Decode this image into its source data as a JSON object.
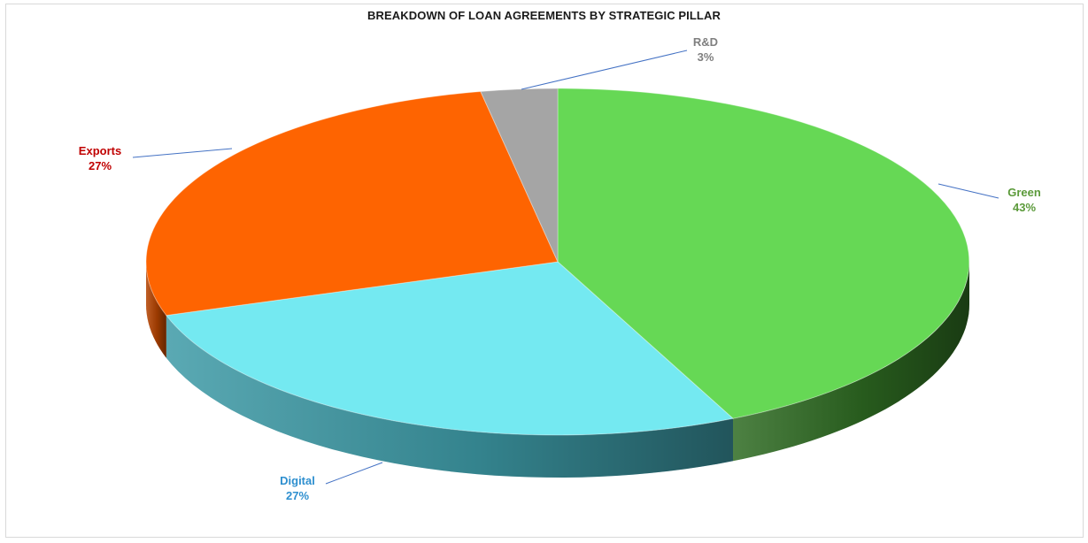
{
  "chart_data": {
    "type": "pie",
    "title": "BREAKDOWN OF LOAN AGREEMENTS BY STRATEGIC PILLAR",
    "slices": [
      {
        "name": "Green",
        "label": "Green",
        "value": 43,
        "value_label": "43%",
        "color": "#66d855",
        "side_color": "#2e6b22",
        "label_color": "#5b9a3a"
      },
      {
        "name": "Digital",
        "label": "Digital",
        "value": 27,
        "value_label": "27%",
        "color": "#74e9f1",
        "side_color": "#3d9aa6",
        "label_color": "#2e8fcf"
      },
      {
        "name": "Exports",
        "label": "Exports",
        "value": 27,
        "value_label": "27%",
        "color": "#fe6401",
        "side_color": "#b54300",
        "label_color": "#c00000"
      },
      {
        "name": "R&D",
        "label": "R&D",
        "value": 3,
        "value_label": "3%",
        "color": "#a5a5a5",
        "side_color": "#6e6e6e",
        "label_color": "#7f7f7f"
      }
    ],
    "legend": "none",
    "style": "3d-pie"
  }
}
